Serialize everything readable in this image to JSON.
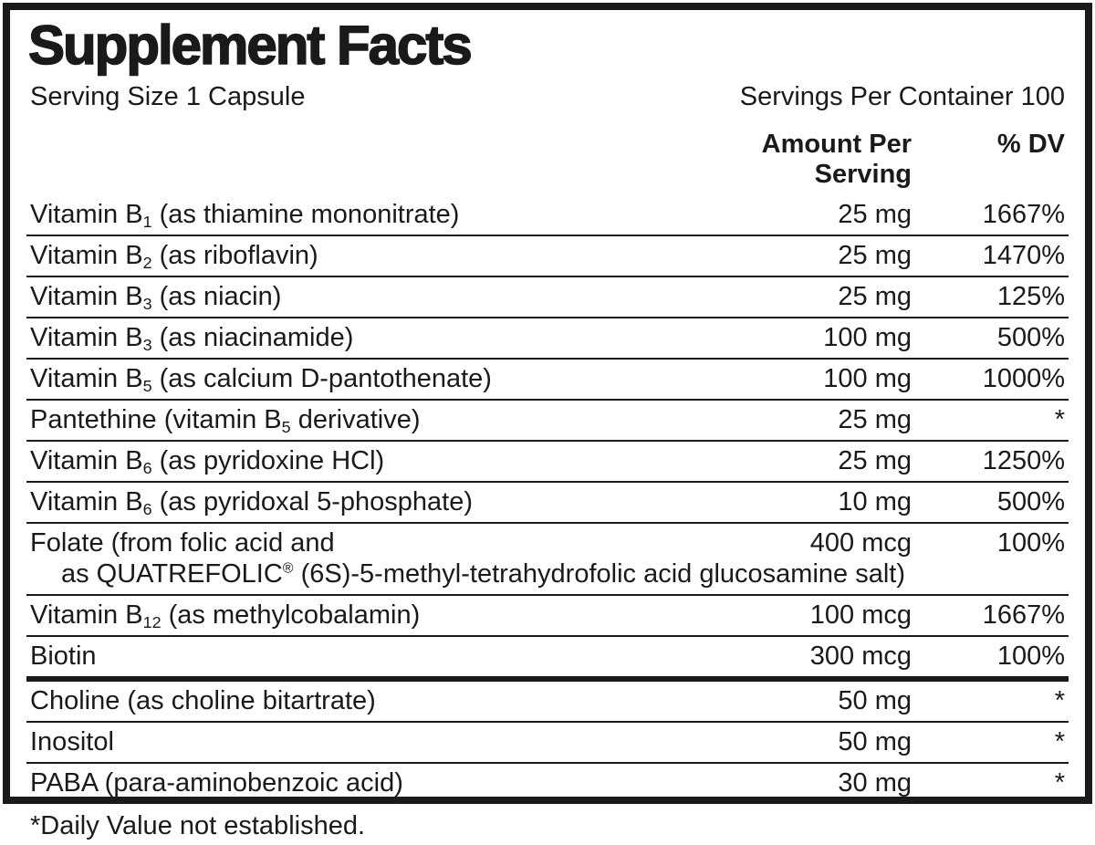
{
  "title": "Supplement Facts",
  "serving": {
    "size": "Serving Size 1 Capsule",
    "per_container": "Servings Per Container 100"
  },
  "columns": {
    "amount": "Amount Per Serving",
    "dv": "% DV"
  },
  "table": {
    "rows": [
      {
        "name_pre": "Vitamin B",
        "name_sub": "1",
        "name_post": " (as thiamine mononitrate)",
        "amount": "25 mg",
        "dv": "1667%"
      },
      {
        "name_pre": "Vitamin B",
        "name_sub": "2",
        "name_post": " (as riboflavin)",
        "amount": "25 mg",
        "dv": "1470%"
      },
      {
        "name_pre": "Vitamin B",
        "name_sub": "3",
        "name_post": " (as niacin)",
        "amount": "25 mg",
        "dv": "125%"
      },
      {
        "name_pre": "Vitamin B",
        "name_sub": "3",
        "name_post": " (as niacinamide)",
        "amount": "100 mg",
        "dv": "500%"
      },
      {
        "name_pre": "Vitamin B",
        "name_sub": "5",
        "name_post": " (as calcium D-pantothenate)",
        "amount": "100 mg",
        "dv": "1000%"
      },
      {
        "name_pre": "Pantethine (vitamin B",
        "name_sub": "5",
        "name_post": " derivative)",
        "amount": "25 mg",
        "dv": "*"
      },
      {
        "name_pre": "Vitamin B",
        "name_sub": "6",
        "name_post": " (as pyridoxine HCl)",
        "amount": "25 mg",
        "dv": "1250%"
      },
      {
        "name_pre": "Vitamin B",
        "name_sub": "6",
        "name_post": " (as pyridoxal 5-phosphate)",
        "amount": "10 mg",
        "dv": "500%"
      },
      {
        "name_pre": "Folate (from folic acid and",
        "name_sub": "",
        "name_post": "",
        "amount": "400 mcg",
        "dv": "100%",
        "line2": {
          "pre": "as QUATREFOLIC",
          "sup": "®",
          "post": " (6S)-5-methyl-tetrahydrofolic acid glucosamine salt)"
        }
      },
      {
        "name_pre": "Vitamin B",
        "name_sub": "12",
        "name_post": " (as methylcobalamin)",
        "amount": "100 mcg",
        "dv": "1667%"
      },
      {
        "name_pre": "Biotin",
        "name_sub": "",
        "name_post": "",
        "amount": "300 mcg",
        "dv": "100%"
      },
      {
        "name_pre": "Choline (as choline bitartrate)",
        "name_sub": "",
        "name_post": "",
        "amount": "50 mg",
        "dv": "*",
        "thick_top": true
      },
      {
        "name_pre": "Inositol",
        "name_sub": "",
        "name_post": "",
        "amount": "50 mg",
        "dv": "*"
      },
      {
        "name_pre": "PABA (para-aminobenzoic acid)",
        "name_sub": "",
        "name_post": "",
        "amount": "30 mg",
        "dv": "*"
      }
    ]
  },
  "footnote": "*Daily Value not established.",
  "colors": {
    "ink": "#1a1a1a",
    "background": "#ffffff"
  }
}
